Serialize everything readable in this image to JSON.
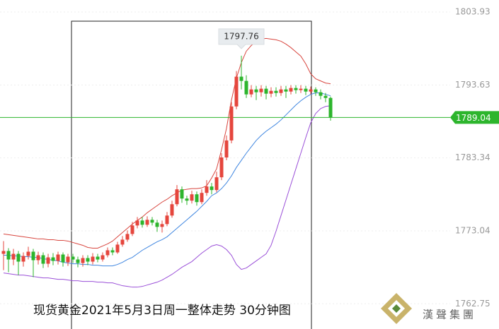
{
  "chart_data": {
    "type": "candlestick",
    "caption": "现货黄金2021年5月3日周一整体走势  30分钟图",
    "brand": "漢聲集團",
    "ylim": [
      1759.19,
      1805.62
    ],
    "yticks": [
      1803.93,
      1793.63,
      1783.34,
      1773.04,
      1762.75
    ],
    "grid": true,
    "up_color": "#e5463d",
    "down_color": "#2db52d",
    "open": [
      1769.8,
      1770.2,
      1769.0,
      1769.8,
      1768.7,
      1769.5,
      1770.1,
      1768.9,
      1769.6,
      1768.4,
      1769.3,
      1768.8,
      1769.7,
      1768.6,
      1769.4,
      1769.0,
      1768.5,
      1769.2,
      1768.7,
      1769.4,
      1769.0,
      1769.6,
      1770.3,
      1770.0,
      1771.1,
      1771.8,
      1772.6,
      1773.8,
      1774.5,
      1773.9,
      1774.6,
      1774.2,
      1773.6,
      1774.0,
      1775.2,
      1776.8,
      1778.9,
      1777.6,
      1777.3,
      1778.2,
      1777.1,
      1778.4,
      1779.3,
      1778.8,
      1780.6,
      1783.4,
      1785.8,
      1790.6,
      1794.8,
      1794.2,
      1792.3,
      1793.0,
      1792.6,
      1793.1,
      1792.4,
      1792.8,
      1792.5,
      1793.0,
      1792.7,
      1793.2,
      1792.9,
      1793.1,
      1792.7,
      1793.0,
      1792.6,
      1792.1,
      1791.8
    ],
    "high": [
      1771.6,
      1770.6,
      1770.5,
      1770.2,
      1770.0,
      1770.8,
      1770.5,
      1770.1,
      1770.0,
      1769.8,
      1769.9,
      1770.1,
      1770.0,
      1769.8,
      1769.8,
      1769.4,
      1769.6,
      1769.6,
      1769.9,
      1769.8,
      1770.0,
      1770.7,
      1770.7,
      1771.5,
      1772.3,
      1773.1,
      1774.3,
      1775.0,
      1775.0,
      1775.1,
      1775.0,
      1774.6,
      1774.5,
      1775.7,
      1777.3,
      1779.5,
      1779.3,
      1778.0,
      1778.7,
      1778.6,
      1778.9,
      1780.2,
      1779.8,
      1781.4,
      1784.0,
      1786.5,
      1791.2,
      1795.6,
      1797.76,
      1795.0,
      1793.6,
      1793.5,
      1793.6,
      1793.5,
      1793.3,
      1793.3,
      1793.5,
      1793.5,
      1793.6,
      1793.6,
      1793.6,
      1793.5,
      1793.4,
      1793.3,
      1793.0,
      1792.5,
      1792.0
    ],
    "low": [
      1767.5,
      1767.2,
      1768.2,
      1766.8,
      1768.0,
      1769.0,
      1766.5,
      1768.3,
      1767.8,
      1767.9,
      1768.2,
      1768.3,
      1768.0,
      1768.1,
      1768.5,
      1767.9,
      1768.0,
      1768.2,
      1768.3,
      1768.6,
      1768.7,
      1769.3,
      1769.6,
      1769.8,
      1770.8,
      1771.5,
      1772.3,
      1773.4,
      1773.5,
      1773.6,
      1773.8,
      1772.9,
      1772.8,
      1773.7,
      1774.9,
      1776.5,
      1777.0,
      1776.7,
      1776.9,
      1776.6,
      1776.8,
      1778.0,
      1778.2,
      1778.5,
      1780.2,
      1783.0,
      1785.4,
      1790.2,
      1793.0,
      1791.8,
      1791.9,
      1791.5,
      1792.0,
      1791.6,
      1791.9,
      1792.0,
      1792.1,
      1791.8,
      1792.3,
      1792.4,
      1792.5,
      1792.2,
      1792.3,
      1792.1,
      1791.6,
      1791.2,
      1788.6
    ],
    "close": [
      1770.2,
      1769.0,
      1769.8,
      1768.7,
      1769.5,
      1770.1,
      1768.9,
      1769.6,
      1768.4,
      1769.3,
      1768.8,
      1769.7,
      1768.6,
      1769.4,
      1769.0,
      1768.5,
      1769.2,
      1768.7,
      1769.4,
      1769.0,
      1769.6,
      1770.3,
      1770.0,
      1771.1,
      1771.8,
      1772.6,
      1773.8,
      1774.5,
      1773.9,
      1774.6,
      1774.2,
      1773.6,
      1774.0,
      1775.2,
      1776.8,
      1778.9,
      1777.6,
      1777.3,
      1778.2,
      1777.1,
      1778.4,
      1779.3,
      1778.8,
      1780.6,
      1783.4,
      1785.8,
      1790.6,
      1794.8,
      1794.2,
      1792.3,
      1793.0,
      1792.6,
      1793.1,
      1792.4,
      1792.8,
      1792.5,
      1793.0,
      1792.7,
      1793.2,
      1792.9,
      1793.1,
      1792.7,
      1793.0,
      1792.6,
      1792.1,
      1791.8,
      1789.04
    ],
    "bands": [
      {
        "color": "#d8453e",
        "values": [
          1772.6,
          1772.5,
          1772.4,
          1772.3,
          1772.2,
          1772.1,
          1772.0,
          1771.9,
          1771.9,
          1771.8,
          1771.8,
          1771.7,
          1771.7,
          1771.6,
          1771.4,
          1771.2,
          1771.0,
          1770.7,
          1770.6,
          1770.6,
          1770.9,
          1771.2,
          1771.6,
          1772.2,
          1772.8,
          1773.4,
          1774.0,
          1774.5,
          1775.0,
          1775.6,
          1776.1,
          1776.6,
          1777.1,
          1777.5,
          1778.0,
          1778.4,
          1778.8,
          1778.9,
          1779.0,
          1779.0,
          1779.1,
          1779.4,
          1780.5,
          1781.8,
          1784.5,
          1787.5,
          1791.5,
          1794.6,
          1796.8,
          1798.4,
          1799.2,
          1799.8,
          1800.1,
          1800.2,
          1800.1,
          1800.0,
          1799.8,
          1799.4,
          1798.9,
          1798.3,
          1797.7,
          1796.6,
          1795.2,
          1794.5,
          1794.2,
          1793.9,
          1793.8
        ]
      },
      {
        "color": "#3f86e0",
        "values": [
          1769.6,
          1769.6,
          1769.5,
          1769.5,
          1769.4,
          1769.4,
          1769.3,
          1769.3,
          1769.1,
          1769.0,
          1768.9,
          1768.8,
          1768.6,
          1768.5,
          1768.4,
          1768.4,
          1768.3,
          1768.3,
          1768.2,
          1768.2,
          1768.1,
          1768.1,
          1768.1,
          1768.3,
          1768.6,
          1769.0,
          1769.3,
          1769.8,
          1770.3,
          1770.7,
          1771.1,
          1771.5,
          1771.8,
          1772.2,
          1772.8,
          1773.4,
          1774.0,
          1774.6,
          1775.2,
          1775.8,
          1776.5,
          1777.2,
          1778.0,
          1778.4,
          1779.0,
          1779.8,
          1780.8,
          1782.0,
          1783.0,
          1784.0,
          1784.9,
          1785.8,
          1786.5,
          1787.1,
          1787.6,
          1788.1,
          1788.7,
          1789.4,
          1790.1,
          1790.8,
          1791.4,
          1791.9,
          1792.3,
          1792.5,
          1792.5,
          1792.3,
          1792.1
        ]
      },
      {
        "color": "#9a4fd8",
        "values": [
          1767.1,
          1767.0,
          1766.9,
          1766.8,
          1766.8,
          1766.7,
          1766.6,
          1766.5,
          1766.4,
          1766.4,
          1766.3,
          1766.2,
          1766.2,
          1766.1,
          1766.0,
          1766.0,
          1765.9,
          1765.9,
          1765.9,
          1765.8,
          1765.8,
          1765.7,
          1765.7,
          1765.5,
          1765.3,
          1765.2,
          1765.1,
          1765.1,
          1765.2,
          1765.4,
          1765.6,
          1765.8,
          1766.1,
          1766.5,
          1766.9,
          1767.4,
          1767.9,
          1768.3,
          1768.7,
          1769.3,
          1769.9,
          1770.4,
          1770.9,
          1771.1,
          1770.9,
          1770.4,
          1769.6,
          1768.3,
          1767.6,
          1767.8,
          1768.3,
          1768.8,
          1769.3,
          1769.8,
          1771.0,
          1773.0,
          1775.2,
          1777.4,
          1779.6,
          1781.8,
          1784.0,
          1786.2,
          1788.3,
          1789.6,
          1790.3,
          1790.6,
          1790.7
        ]
      }
    ]
  }
}
